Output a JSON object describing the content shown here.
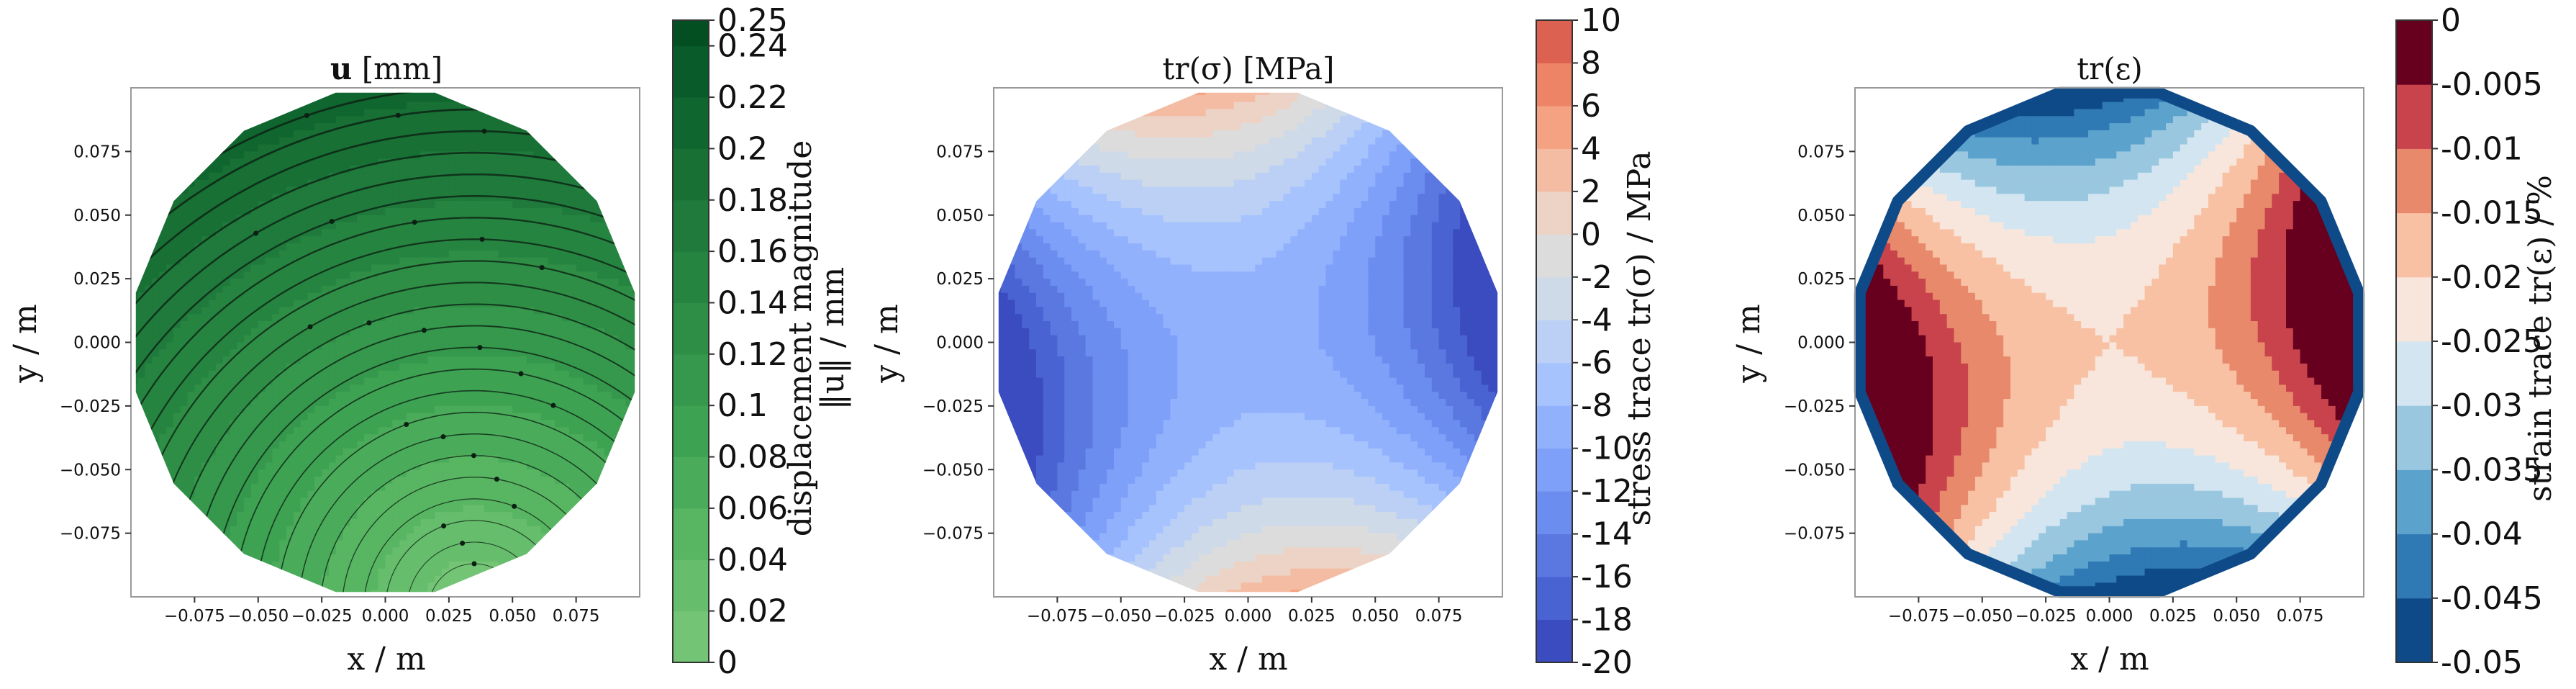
{
  "chart_data": [
    {
      "type": "heatmap",
      "title": "u [mm]",
      "title_bold": "u",
      "title_rest": " [mm]",
      "xlabel": "x / m",
      "ylabel": "y / m",
      "xlim": [
        -0.1,
        0.1
      ],
      "ylim": [
        -0.1,
        0.1
      ],
      "xticks": [
        -0.075,
        -0.05,
        -0.025,
        0.0,
        0.025,
        0.05,
        0.075
      ],
      "xtick_labels": [
        "−0.075",
        "−0.050",
        "−0.025",
        "0.000",
        "0.025",
        "0.050",
        "0.075"
      ],
      "ytick_labels": [
        "0.075",
        "0.050",
        "0.025",
        "0.000",
        "−0.025",
        "−0.050",
        "−0.075"
      ],
      "colorbar": {
        "label_line1": "displacement magnitude",
        "label_line2": "‖u‖ / mm",
        "levels": [
          0,
          0.02,
          0.04,
          0.06,
          0.08,
          0.1,
          0.12,
          0.14,
          0.16,
          0.18,
          0.2,
          0.22,
          0.24,
          0.25
        ],
        "tick_labels": [
          "0.25",
          "0.24",
          "0.22",
          "0.2",
          "0.18",
          "0.16",
          "0.14",
          "0.12",
          "0.1",
          "0.08",
          "0.06",
          "0.04",
          "0.02",
          "0"
        ],
        "colors": [
          "#74c476",
          "#66bd6c",
          "#58b562",
          "#4aac5a",
          "#3ea253",
          "#35984c",
          "#2e8e46",
          "#268441",
          "#1f7a3c",
          "#187035",
          "#10662f",
          "#095c29",
          "#034f22"
        ]
      },
      "overlay": "streamlines"
    },
    {
      "type": "heatmap",
      "title": "tr(σ) [MPa]",
      "xlabel": "x / m",
      "ylabel": "y / m",
      "xlim": [
        -0.1,
        0.1
      ],
      "ylim": [
        -0.1,
        0.1
      ],
      "xticks": [
        -0.075,
        -0.05,
        -0.025,
        0.0,
        0.025,
        0.05,
        0.075
      ],
      "xtick_labels": [
        "−0.075",
        "−0.050",
        "−0.025",
        "0.000",
        "0.025",
        "0.050",
        "0.075"
      ],
      "ytick_labels": [
        "0.075",
        "0.050",
        "0.025",
        "0.000",
        "−0.025",
        "−0.050",
        "−0.075"
      ],
      "colorbar": {
        "label": "stress trace tr(σ) / MPa",
        "levels": [
          -20,
          -18,
          -16,
          -14,
          -12,
          -10,
          -8,
          -6,
          -4,
          -2,
          0,
          2,
          4,
          6,
          8,
          10
        ],
        "tick_labels": [
          "10",
          "8",
          "6",
          "4",
          "2",
          "0",
          "-2",
          "-4",
          "-6",
          "-8",
          "-10",
          "-12",
          "-14",
          "-16",
          "-18",
          "-20"
        ],
        "colors": [
          "#3b4cc0",
          "#4a63d3",
          "#5a78e0",
          "#6b8df0",
          "#7ea0f8",
          "#92b1fd",
          "#a6c3fe",
          "#bcd0f5",
          "#cfdae8",
          "#dddcdc",
          "#ecd3c5",
          "#f3bca3",
          "#f4a281",
          "#ee8466",
          "#dd6151",
          "#c43032",
          "#b40426"
        ]
      }
    },
    {
      "type": "heatmap",
      "title": "tr(ε)",
      "xlabel": "x / m",
      "ylabel": "y / m",
      "xlim": [
        -0.1,
        0.1
      ],
      "ylim": [
        -0.1,
        0.1
      ],
      "xticks": [
        -0.075,
        -0.05,
        -0.025,
        0.0,
        0.025,
        0.05,
        0.075
      ],
      "xtick_labels": [
        "−0.075",
        "−0.050",
        "−0.025",
        "0.000",
        "0.025",
        "0.050",
        "0.075"
      ],
      "ytick_labels": [
        "0.075",
        "0.050",
        "0.025",
        "0.000",
        "−0.025",
        "−0.050",
        "−0.075"
      ],
      "colorbar": {
        "label": "strain trace tr(ε) / %",
        "levels": [
          -0.05,
          -0.045,
          -0.04,
          -0.035,
          -0.03,
          -0.025,
          -0.02,
          -0.015,
          -0.01,
          -0.005,
          0
        ],
        "tick_labels": [
          "0",
          "-0.005",
          "-0.01",
          "-0.015",
          "-0.02",
          "-0.025",
          "-0.03",
          "-0.035",
          "-0.04",
          "-0.045",
          "-0.05"
        ],
        "colors": [
          "#0f4a88",
          "#2f79b5",
          "#5ba2cc",
          "#9ac7e0",
          "#d2e5f0",
          "#f8e6dc",
          "#f8c1a4",
          "#e8896c",
          "#c8434b",
          "#67001f"
        ]
      }
    }
  ]
}
